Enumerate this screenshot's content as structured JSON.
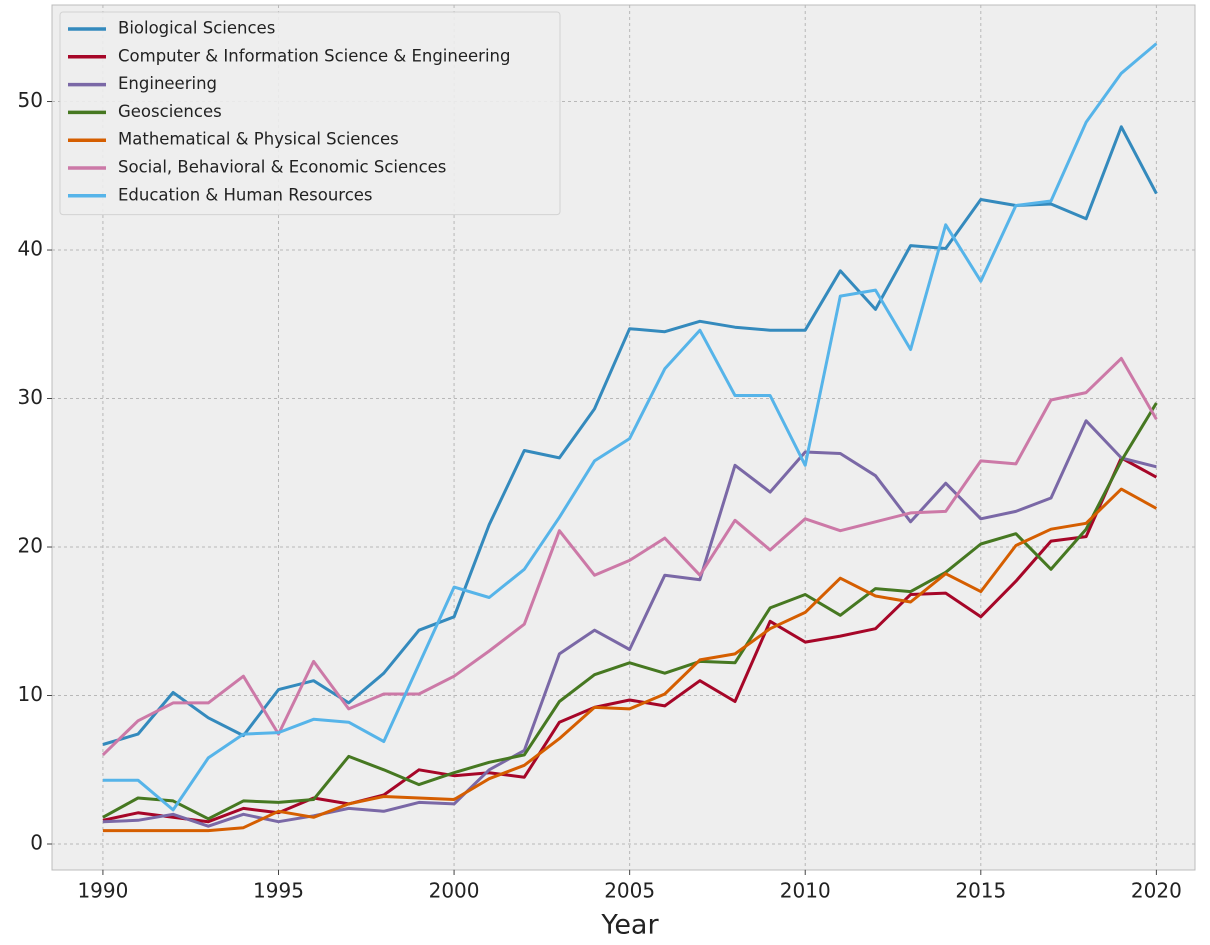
{
  "chart_data": {
    "type": "line",
    "x_label": "Year",
    "x": [
      1990,
      1991,
      1992,
      1993,
      1994,
      1995,
      1996,
      1997,
      1998,
      1999,
      2000,
      2001,
      2002,
      2003,
      2004,
      2005,
      2006,
      2007,
      2008,
      2009,
      2010,
      2011,
      2012,
      2013,
      2014,
      2015,
      2016,
      2017,
      2018,
      2019,
      2020
    ],
    "series": [
      {
        "name": "Biological Sciences",
        "color": "#348ABD",
        "values": [
          6.7,
          7.4,
          10.2,
          8.5,
          7.3,
          10.4,
          11.0,
          9.5,
          11.5,
          14.4,
          15.3,
          21.5,
          26.5,
          26.0,
          29.3,
          34.7,
          34.5,
          35.2,
          34.8,
          34.6,
          34.6,
          38.6,
          36.0,
          40.3,
          40.1,
          43.4,
          43.0,
          43.1,
          42.1,
          48.3,
          43.8
        ]
      },
      {
        "name": "Computer & Information Science & Engineering",
        "color": "#A60628",
        "values": [
          1.6,
          2.1,
          1.8,
          1.5,
          2.4,
          2.1,
          3.1,
          2.7,
          3.3,
          5.0,
          4.6,
          4.8,
          4.5,
          8.2,
          9.2,
          9.7,
          9.3,
          11.0,
          9.6,
          15.0,
          13.6,
          14.0,
          14.5,
          16.8,
          16.9,
          15.3,
          17.7,
          20.4,
          20.7,
          26.0,
          24.7
        ]
      },
      {
        "name": "Engineering",
        "color": "#7A68A6",
        "values": [
          1.5,
          1.6,
          2.0,
          1.2,
          2.0,
          1.5,
          1.9,
          2.4,
          2.2,
          2.8,
          2.7,
          5.0,
          6.3,
          12.8,
          14.4,
          13.1,
          18.1,
          17.8,
          25.5,
          23.7,
          26.4,
          26.3,
          24.8,
          21.7,
          24.3,
          21.9,
          22.4,
          23.3,
          28.5,
          26.0,
          25.4
        ]
      },
      {
        "name": "Geosciences",
        "color": "#467821",
        "values": [
          1.8,
          3.1,
          2.9,
          1.7,
          2.9,
          2.8,
          3.0,
          5.9,
          5.0,
          4.0,
          4.8,
          5.5,
          6.0,
          9.6,
          11.4,
          12.2,
          11.5,
          12.3,
          12.2,
          15.9,
          16.8,
          15.4,
          17.2,
          17.0,
          18.3,
          20.2,
          20.9,
          18.5,
          21.2,
          25.8,
          29.7
        ]
      },
      {
        "name": "Mathematical & Physical Sciences",
        "color": "#D55E00",
        "values": [
          0.9,
          0.9,
          0.9,
          0.9,
          1.1,
          2.2,
          1.8,
          2.7,
          3.2,
          3.1,
          3.0,
          4.4,
          5.3,
          7.1,
          9.2,
          9.1,
          10.1,
          12.4,
          12.8,
          14.5,
          15.6,
          17.9,
          16.7,
          16.3,
          18.2,
          17.0,
          20.1,
          21.2,
          21.6,
          23.9,
          22.6
        ]
      },
      {
        "name": "Social, Behavioral & Economic Sciences",
        "color": "#CC79A7",
        "values": [
          6.0,
          8.3,
          9.5,
          9.5,
          11.3,
          7.4,
          12.3,
          9.1,
          10.1,
          10.1,
          11.3,
          13.0,
          14.8,
          21.1,
          18.1,
          19.1,
          20.6,
          18.1,
          21.8,
          19.8,
          21.9,
          21.1,
          21.7,
          22.3,
          22.4,
          25.8,
          25.6,
          29.9,
          30.4,
          32.7,
          28.6
        ]
      },
      {
        "name": "Education & Human Resources",
        "color": "#56B4E9",
        "values": [
          4.3,
          4.3,
          2.3,
          5.8,
          7.4,
          7.5,
          8.4,
          8.2,
          6.9,
          12.1,
          17.3,
          16.6,
          18.5,
          22.0,
          25.8,
          27.3,
          32.0,
          34.6,
          30.2,
          30.2,
          25.5,
          36.9,
          37.3,
          33.3,
          41.7,
          37.9,
          43.0,
          43.3,
          48.6,
          51.9,
          53.9
        ]
      }
    ],
    "xlim": [
      1988.55,
      2021.1
    ],
    "ylim": [
      -1.75,
      56.5
    ],
    "xticks": [
      1990,
      1995,
      2000,
      2005,
      2010,
      2015,
      2020
    ],
    "yticks": [
      0,
      10,
      20,
      30,
      40,
      50
    ],
    "grid": true,
    "legend": "upper left"
  }
}
